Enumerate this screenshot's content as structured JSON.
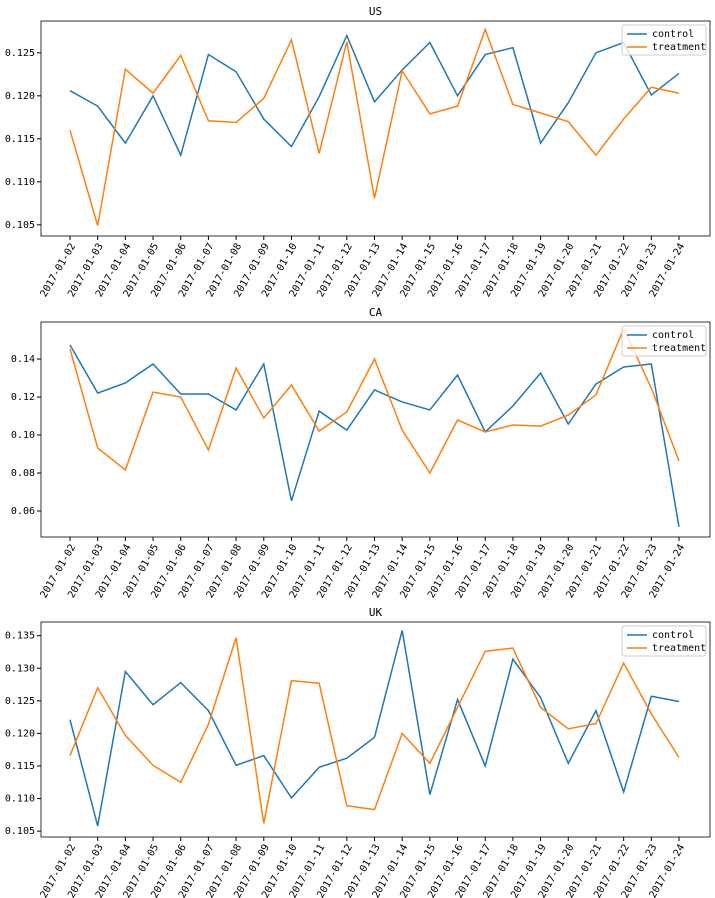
{
  "chart_data": [
    {
      "type": "line",
      "title": "US",
      "categories": [
        "2017-01-02",
        "2017-01-03",
        "2017-01-04",
        "2017-01-05",
        "2017-01-06",
        "2017-01-07",
        "2017-01-08",
        "2017-01-09",
        "2017-01-10",
        "2017-01-11",
        "2017-01-12",
        "2017-01-13",
        "2017-01-14",
        "2017-01-15",
        "2017-01-16",
        "2017-01-17",
        "2017-01-18",
        "2017-01-19",
        "2017-01-20",
        "2017-01-21",
        "2017-01-22",
        "2017-01-23",
        "2017-01-24"
      ],
      "series": [
        {
          "name": "control",
          "color": "#1f77b4",
          "values": [
            0.1206,
            0.1188,
            0.1145,
            0.12,
            0.1131,
            0.1248,
            0.1228,
            0.1173,
            0.1141,
            0.1199,
            0.127,
            0.1193,
            0.123,
            0.1262,
            0.12,
            0.1248,
            0.1256,
            0.1145,
            0.1192,
            0.125,
            0.1262,
            0.1201,
            0.1226
          ]
        },
        {
          "name": "treatment",
          "color": "#ff7f0e",
          "values": [
            0.116,
            0.1049,
            0.1231,
            0.1203,
            0.1247,
            0.1171,
            0.1169,
            0.1197,
            0.1265,
            0.1133,
            0.1263,
            0.1081,
            0.1229,
            0.1179,
            0.1188,
            0.1277,
            0.119,
            0.118,
            0.117,
            0.1131,
            0.1173,
            0.121,
            0.1203
          ]
        }
      ],
      "ylim": [
        0.1037,
        0.1287
      ],
      "yticks": [
        {
          "value": 0.105,
          "label": "0.105"
        },
        {
          "value": 0.11,
          "label": "0.110"
        },
        {
          "value": 0.115,
          "label": "0.115"
        },
        {
          "value": 0.12,
          "label": "0.120"
        },
        {
          "value": 0.125,
          "label": "0.125"
        }
      ],
      "legend": "upper right"
    },
    {
      "type": "line",
      "title": "CA",
      "categories": [
        "2017-01-02",
        "2017-01-03",
        "2017-01-04",
        "2017-01-05",
        "2017-01-06",
        "2017-01-07",
        "2017-01-08",
        "2017-01-09",
        "2017-01-10",
        "2017-01-11",
        "2017-01-12",
        "2017-01-13",
        "2017-01-14",
        "2017-01-15",
        "2017-01-16",
        "2017-01-17",
        "2017-01-18",
        "2017-01-19",
        "2017-01-20",
        "2017-01-21",
        "2017-01-22",
        "2017-01-23",
        "2017-01-24"
      ],
      "series": [
        {
          "name": "control",
          "color": "#1f77b4",
          "values": [
            0.1474,
            0.1221,
            0.1274,
            0.1374,
            0.1216,
            0.1216,
            0.1132,
            0.1374,
            0.0653,
            0.1126,
            0.1026,
            0.1237,
            0.1174,
            0.1132,
            0.1316,
            0.1016,
            0.1153,
            0.1326,
            0.1058,
            0.1268,
            0.1358,
            0.1374,
            0.0516
          ]
        },
        {
          "name": "treatment",
          "color": "#ff7f0e",
          "values": [
            0.1453,
            0.0932,
            0.0816,
            0.1226,
            0.12,
            0.0921,
            0.1353,
            0.1089,
            0.1263,
            0.1021,
            0.1121,
            0.14,
            0.1026,
            0.08,
            0.1079,
            0.1016,
            0.1053,
            0.1047,
            0.1105,
            0.1211,
            0.1558,
            0.1247,
            0.0863
          ]
        }
      ],
      "ylim": [
        0.0463,
        0.1595
      ],
      "yticks": [
        0.06,
        0.08,
        {
          "value": 0.1,
          "label": "0.10"
        },
        0.12,
        0.14
      ],
      "legend": "upper right"
    },
    {
      "type": "line",
      "title": "UK",
      "categories": [
        "2017-01-02",
        "2017-01-03",
        "2017-01-04",
        "2017-01-05",
        "2017-01-06",
        "2017-01-07",
        "2017-01-08",
        "2017-01-09",
        "2017-01-10",
        "2017-01-11",
        "2017-01-12",
        "2017-01-13",
        "2017-01-14",
        "2017-01-15",
        "2017-01-16",
        "2017-01-17",
        "2017-01-18",
        "2017-01-19",
        "2017-01-20",
        "2017-01-21",
        "2017-01-22",
        "2017-01-23",
        "2017-01-24"
      ],
      "series": [
        {
          "name": "control",
          "color": "#1f77b4",
          "values": [
            0.1221,
            0.1058,
            0.1295,
            0.1244,
            0.1278,
            0.1235,
            0.1151,
            0.1166,
            0.1101,
            0.1148,
            0.1162,
            0.1194,
            0.1358,
            0.1106,
            0.1252,
            0.115,
            0.1314,
            0.1255,
            0.1154,
            0.1235,
            0.111,
            0.1257,
            0.1249
          ]
        },
        {
          "name": "treatment",
          "color": "#ff7f0e",
          "values": [
            0.1166,
            0.127,
            0.1197,
            0.1151,
            0.1125,
            0.1214,
            0.1347,
            0.1062,
            0.1281,
            0.1277,
            0.1089,
            0.1083,
            0.12,
            0.1154,
            0.124,
            0.1326,
            0.1331,
            0.124,
            0.1207,
            0.1215,
            0.1308,
            0.123,
            0.1163
          ]
        }
      ],
      "ylim": [
        0.1041,
        0.1371
      ],
      "yticks": [
        {
          "value": 0.105,
          "label": "0.105"
        },
        {
          "value": 0.11,
          "label": "0.110"
        },
        {
          "value": 0.115,
          "label": "0.115"
        },
        {
          "value": 0.12,
          "label": "0.120"
        },
        {
          "value": 0.125,
          "label": "0.125"
        },
        {
          "value": 0.13,
          "label": "0.130"
        },
        {
          "value": 0.135,
          "label": "0.135"
        }
      ],
      "legend": "upper right"
    }
  ]
}
